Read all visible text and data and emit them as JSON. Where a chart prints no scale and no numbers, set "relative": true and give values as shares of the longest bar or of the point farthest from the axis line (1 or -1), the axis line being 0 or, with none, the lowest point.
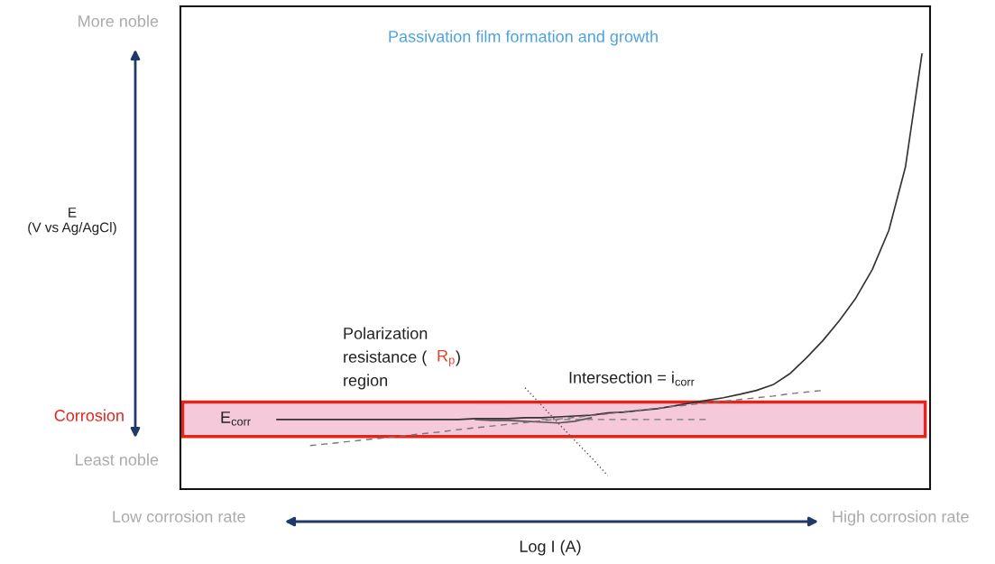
{
  "chart_data": {
    "type": "line",
    "relative": true,
    "xlabel": "Log I (A)",
    "categories": [
      null,
      null,
      null,
      null,
      null,
      null,
      null,
      null,
      null,
      null,
      null,
      null,
      null,
      null,
      null,
      null,
      null,
      null,
      null,
      null,
      null,
      null,
      null,
      null,
      null,
      null,
      null,
      null,
      null,
      null,
      null,
      null,
      null,
      null,
      null,
      null,
      null,
      null,
      null,
      null
    ],
    "series": [
      {
        "color": "#333333",
        "line_style": "solid",
        "values": [
          0.16,
          0.16,
          0.16,
          0.16,
          0.16,
          0.16,
          0.16,
          0.16,
          0.16,
          0.16,
          0.16,
          0.16,
          0.162,
          0.162,
          0.162,
          0.164,
          0.164,
          0.166,
          0.168,
          0.17,
          0.175,
          0.177,
          0.181,
          0.185,
          0.191,
          0.198,
          0.204,
          0.21,
          0.218,
          0.227,
          0.24,
          0.265,
          0.301,
          0.341,
          0.387,
          0.439,
          0.505,
          0.595,
          0.74,
          1.0
        ]
      },
      {
        "color": "#555555",
        "line_style": "solid",
        "values": [
          null,
          null,
          null,
          null,
          null,
          null,
          null,
          null,
          null,
          null,
          null,
          null,
          0.16,
          0.158,
          0.158,
          0.156,
          0.154,
          0.152,
          0.156,
          0.164,
          null,
          null,
          null,
          null,
          null,
          null,
          null,
          null,
          null,
          null,
          null,
          null,
          null,
          null,
          null,
          null,
          null,
          null,
          null,
          null
        ]
      },
      {
        "color": "#777777",
        "line_style": "dashed",
        "values": [
          null,
          null,
          0.1,
          0.104,
          0.108,
          0.112,
          0.116,
          0.12,
          0.124,
          0.128,
          0.132,
          0.137,
          0.141,
          0.145,
          0.149,
          0.153,
          0.157,
          0.161,
          0.165,
          0.169,
          0.173,
          0.178,
          0.182,
          0.186,
          0.19,
          0.194,
          0.198,
          0.202,
          0.206,
          0.21,
          0.214,
          0.219,
          0.223,
          0.227,
          null,
          null,
          null,
          null,
          null,
          null
        ]
      },
      {
        "color": "#777777",
        "line_style": "dashed",
        "values": [
          null,
          null,
          null,
          null,
          null,
          null,
          null,
          null,
          null,
          null,
          null,
          null,
          null,
          null,
          null,
          null,
          0.16,
          0.16,
          0.16,
          0.16,
          0.16,
          0.16,
          0.16,
          0.16,
          0.16,
          0.16,
          0.16,
          null,
          null,
          null,
          null,
          null,
          null,
          null,
          null,
          null,
          null,
          null,
          null,
          null
        ]
      },
      {
        "color": "#555555",
        "line_style": "dotted",
        "values": [
          null,
          null,
          null,
          null,
          null,
          null,
          null,
          null,
          null,
          null,
          null,
          null,
          null,
          null,
          null,
          0.233,
          0.193,
          0.152,
          0.112,
          0.073,
          0.031,
          null,
          null,
          null,
          null,
          null,
          null,
          null,
          null,
          null,
          null,
          null,
          null,
          null,
          null,
          null,
          null,
          null,
          null,
          null
        ]
      }
    ],
    "bands": [
      {
        "axis": "y",
        "from": 0.121,
        "to": 0.2,
        "color": "#f5c8da"
      }
    ],
    "annotations": [
      "Passivation film formation and growth",
      "Polarization",
      "resistance (",
      "R$_{p}$",
      ")",
      "region",
      "Intersection = i$_{corr}$",
      "E$_{corr}$",
      "Corrosion",
      "More noble",
      "Least noble",
      "Low corrosion rate",
      "High corrosion rate",
      "E\n(V vs Ag/AgCl)"
    ]
  }
}
